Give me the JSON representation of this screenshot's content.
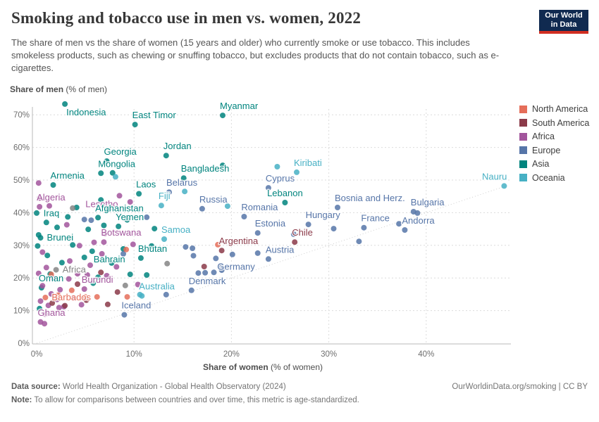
{
  "header": {
    "title": "Smoking and tobacco use in men vs. women, 2022",
    "subtitle": "The share of men vs the share of women (15 years and older) who currently smoke or use tobacco. This includes smokeless products, such as chewing or snuffing tobacco, but excludes products that do not contain tobacco, such as e-cigarettes.",
    "logo_line1": "Our World",
    "logo_line2": "in Data"
  },
  "chart_data": {
    "type": "scatter",
    "x_axis": {
      "label_bold": "Share of women",
      "label_rest": " (% of women)",
      "ticks": [
        0,
        10,
        20,
        30,
        40
      ],
      "max": 48.5
    },
    "y_axis": {
      "label_bold": "Share of men",
      "label_rest": " (% of men)",
      "ticks": [
        0,
        10,
        20,
        30,
        40,
        50,
        60,
        70
      ],
      "max": 74
    },
    "parity_line": {
      "from": 0,
      "to": 48.3
    },
    "grid": true,
    "colors": {
      "na": "#e56e5a",
      "sa": "#8b3a49",
      "af": "#a2559c",
      "eu": "#5675a8",
      "as": "#00847e",
      "oc": "#47b0c4",
      "gr": "#858585"
    },
    "legend": [
      {
        "label": "North America",
        "key": "na"
      },
      {
        "label": "South America",
        "key": "sa"
      },
      {
        "label": "Africa",
        "key": "af"
      },
      {
        "label": "Europe",
        "key": "eu"
      },
      {
        "label": "Asia",
        "key": "as"
      },
      {
        "label": "Oceania",
        "key": "oc"
      }
    ],
    "points": [
      [
        "Indonesia",
        2.9,
        73.3,
        "as",
        "br"
      ],
      [
        "East Timor",
        10.1,
        67,
        "as",
        "ar"
      ],
      [
        "Myanmar",
        19.1,
        69.8,
        "as",
        "ar"
      ],
      [
        "Jordan",
        13.3,
        57.5,
        "as",
        "ar"
      ],
      [
        "Georgia",
        7.2,
        55.8,
        "as",
        "ar"
      ],
      [
        "Mongolia",
        6.6,
        52.1,
        "as",
        "ar"
      ],
      [
        "Bangladesh",
        15.1,
        50.6,
        "as",
        "ar"
      ],
      [
        "Kiribati",
        26.7,
        52.4,
        "oc",
        "ar"
      ],
      [
        "Nauru",
        48,
        48.2,
        "oc",
        "al"
      ],
      [
        "Cyprus",
        23.8,
        47.6,
        "eu",
        "ar"
      ],
      [
        "Belarus",
        13.6,
        46.3,
        "eu",
        "ar"
      ],
      [
        "Laos",
        10.5,
        45.8,
        "as",
        "ar"
      ],
      [
        "Lesotho",
        8.5,
        45.2,
        "af",
        "bl"
      ],
      [
        "Armenia",
        1.7,
        48.5,
        "as",
        "ar"
      ],
      [
        "Algeria",
        0.3,
        41.8,
        "af",
        "ar"
      ],
      [
        "Fiji",
        12.8,
        42.2,
        "oc",
        "ar"
      ],
      [
        "Russia",
        17,
        41.2,
        "eu",
        "ar"
      ],
      [
        "Lebanon",
        25.5,
        43.1,
        "as",
        "a"
      ],
      [
        "Bosnia and Herz.",
        30.9,
        41.6,
        "eu",
        "ar"
      ],
      [
        "Bulgaria",
        38.7,
        40.3,
        "eu",
        "ar"
      ],
      [
        "Iraq",
        1,
        37,
        "as",
        "ar"
      ],
      [
        "Afghanistan",
        6.3,
        38.5,
        "as",
        "ar"
      ],
      [
        "Yemen",
        8.4,
        35.8,
        "as",
        "ar"
      ],
      [
        "Romania",
        21.3,
        38.8,
        "eu",
        "ar"
      ],
      [
        "Estonia",
        22.7,
        33.8,
        "eu",
        "ar"
      ],
      [
        "Hungary",
        27.9,
        36.4,
        "eu",
        "ar"
      ],
      [
        "France",
        33.6,
        35.4,
        "eu",
        "ar"
      ],
      [
        "Andorra",
        37.8,
        34.7,
        "eu",
        "ar"
      ],
      [
        "Chile",
        26.5,
        31,
        "sa",
        "ar"
      ],
      [
        "Argentina",
        19,
        28.4,
        "sa",
        "ar"
      ],
      [
        "Austria",
        23.8,
        25.8,
        "eu",
        "ar"
      ],
      [
        "Germany",
        18.4,
        26,
        "eu",
        "br"
      ],
      [
        "Brunei",
        0.4,
        32.3,
        "as",
        "r"
      ],
      [
        "Botswana",
        6.9,
        31,
        "af",
        "ar"
      ],
      [
        "Samoa",
        13.1,
        31.9,
        "oc",
        "ar"
      ],
      [
        "Bahrain",
        5.7,
        28.2,
        "as",
        "br"
      ],
      [
        "Bhutan",
        10.7,
        26.1,
        "as",
        "ar"
      ],
      [
        "Africa",
        2,
        22.5,
        "gr",
        "r"
      ],
      [
        "Oman",
        0.5,
        17,
        "as",
        "ar"
      ],
      [
        "Burundi",
        4.9,
        16.6,
        "af",
        "ar"
      ],
      [
        "Barbados",
        0.9,
        14,
        "na",
        "r"
      ],
      [
        "Australia",
        10.8,
        14.5,
        "oc",
        "ar"
      ],
      [
        "Denmark",
        15.9,
        16.2,
        "eu",
        "ar"
      ],
      [
        "Iceland",
        9,
        8.7,
        "eu",
        "ar"
      ],
      [
        "Ghana",
        0.4,
        6.5,
        "af",
        "ar"
      ],
      [
        "",
        0,
        39.9,
        "as"
      ],
      [
        "",
        0.2,
        33.2,
        "as"
      ],
      [
        "",
        0.1,
        29.8,
        "as"
      ],
      [
        "",
        1.4,
        21.2,
        "as"
      ],
      [
        "",
        0.3,
        10.6,
        "as"
      ],
      [
        "",
        2.6,
        24.7,
        "as"
      ],
      [
        "",
        1.1,
        26.9,
        "as"
      ],
      [
        "",
        3.2,
        38.7,
        "as"
      ],
      [
        "",
        4.1,
        41.6,
        "as"
      ],
      [
        "",
        5.3,
        34.9,
        "as"
      ],
      [
        "",
        3.7,
        30.1,
        "as"
      ],
      [
        "",
        5.8,
        18.4,
        "as"
      ],
      [
        "",
        4.9,
        26.3,
        "as"
      ],
      [
        "",
        7.8,
        52.2,
        "as"
      ],
      [
        "",
        6.6,
        43.9,
        "as"
      ],
      [
        "",
        7.4,
        41,
        "as"
      ],
      [
        "",
        9.3,
        37.8,
        "as"
      ],
      [
        "",
        6.9,
        36.1,
        "as"
      ],
      [
        "",
        8.9,
        28.9,
        "as"
      ],
      [
        "",
        7.7,
        24.6,
        "as"
      ],
      [
        "",
        9.6,
        21.1,
        "as"
      ],
      [
        "",
        6.3,
        20.2,
        "as"
      ],
      [
        "",
        11.8,
        29.8,
        "as"
      ],
      [
        "",
        12.1,
        35.1,
        "as"
      ],
      [
        "",
        11.3,
        20.9,
        "as"
      ],
      [
        "",
        19.1,
        54.5,
        "as"
      ],
      [
        "",
        2.1,
        35.5,
        "as"
      ],
      [
        "",
        0.2,
        49.1,
        "af"
      ],
      [
        "",
        0.3,
        44.5,
        "af"
      ],
      [
        "",
        1.3,
        42.1,
        "af"
      ],
      [
        "",
        0.6,
        27.9,
        "af"
      ],
      [
        "",
        1,
        23.2,
        "af"
      ],
      [
        "",
        0.2,
        21.4,
        "af"
      ],
      [
        "",
        1.7,
        19.9,
        "af"
      ],
      [
        "",
        0.6,
        17.6,
        "af"
      ],
      [
        "",
        0.4,
        12.9,
        "af"
      ],
      [
        "",
        1.2,
        11.6,
        "af"
      ],
      [
        "",
        2.3,
        10.9,
        "af"
      ],
      [
        "",
        0.9,
        8.9,
        "af"
      ],
      [
        "",
        2.1,
        13.4,
        "af"
      ],
      [
        "",
        2.8,
        11.2,
        "af"
      ],
      [
        "",
        1.5,
        15.1,
        "af"
      ],
      [
        "",
        2.4,
        16.4,
        "af"
      ],
      [
        "",
        3.3,
        19.7,
        "af"
      ],
      [
        "",
        4.2,
        21.3,
        "af"
      ],
      [
        "",
        3.8,
        13.9,
        "af"
      ],
      [
        "",
        4.6,
        11.8,
        "af"
      ],
      [
        "",
        5.2,
        20.9,
        "af"
      ],
      [
        "",
        3.4,
        25.2,
        "af"
      ],
      [
        "",
        4.4,
        29.9,
        "af"
      ],
      [
        "",
        5.5,
        23.9,
        "af"
      ],
      [
        "",
        3.1,
        36.3,
        "af"
      ],
      [
        "",
        7.2,
        20.7,
        "af"
      ],
      [
        "",
        6.7,
        27.4,
        "af"
      ],
      [
        "",
        8.2,
        23.4,
        "af"
      ],
      [
        "",
        9.9,
        30.3,
        "af"
      ],
      [
        "",
        7,
        33.5,
        "af"
      ],
      [
        "",
        9.6,
        43.3,
        "af"
      ],
      [
        "",
        10.4,
        18,
        "af"
      ],
      [
        "",
        5.9,
        30.9,
        "af"
      ],
      [
        "",
        0.8,
        6,
        "af"
      ],
      [
        "",
        4.9,
        37.9,
        "eu"
      ],
      [
        "",
        5.6,
        37.7,
        "eu"
      ],
      [
        "",
        8.9,
        27.4,
        "eu"
      ],
      [
        "",
        11.3,
        38.6,
        "eu"
      ],
      [
        "",
        13.3,
        14.9,
        "eu"
      ],
      [
        "",
        16.6,
        21.5,
        "eu"
      ],
      [
        "",
        17.3,
        21.6,
        "eu"
      ],
      [
        "",
        18.2,
        21.7,
        "eu"
      ],
      [
        "",
        19,
        22.4,
        "eu"
      ],
      [
        "",
        18.9,
        23.7,
        "eu"
      ],
      [
        "",
        16.1,
        26.8,
        "eu"
      ],
      [
        "",
        20.1,
        27.2,
        "eu"
      ],
      [
        "",
        22.7,
        27.6,
        "eu"
      ],
      [
        "",
        26.4,
        33.4,
        "eu"
      ],
      [
        "",
        30.5,
        35.1,
        "eu"
      ],
      [
        "",
        33.1,
        31.2,
        "eu"
      ],
      [
        "",
        37.2,
        36.6,
        "eu"
      ],
      [
        "",
        39.1,
        39.9,
        "eu"
      ],
      [
        "",
        15.3,
        29.5,
        "eu"
      ],
      [
        "",
        16,
        29.1,
        "eu"
      ],
      [
        "",
        8.1,
        51,
        "oc"
      ],
      [
        "",
        24.7,
        54.1,
        "oc"
      ],
      [
        "",
        19.6,
        42,
        "oc"
      ],
      [
        "",
        10.6,
        14.9,
        "oc"
      ],
      [
        "",
        15.2,
        46.5,
        "oc"
      ],
      [
        "",
        1.5,
        21.1,
        "na"
      ],
      [
        "",
        2.2,
        14.7,
        "na"
      ],
      [
        "",
        3.6,
        16.2,
        "na"
      ],
      [
        "",
        5,
        14.2,
        "na"
      ],
      [
        "",
        6.2,
        14.2,
        "na"
      ],
      [
        "",
        9.3,
        14.2,
        "na"
      ],
      [
        "",
        18.6,
        30.2,
        "na"
      ],
      [
        "",
        9.2,
        28.7,
        "na"
      ],
      [
        "",
        1.6,
        12.3,
        "sa"
      ],
      [
        "",
        2.9,
        11.5,
        "sa"
      ],
      [
        "",
        4.2,
        18.1,
        "sa"
      ],
      [
        "",
        5.1,
        13.2,
        "sa"
      ],
      [
        "",
        7.3,
        11.9,
        "sa"
      ],
      [
        "",
        6.6,
        21.7,
        "sa"
      ],
      [
        "",
        8.3,
        15.7,
        "sa"
      ],
      [
        "",
        17.2,
        23.5,
        "sa"
      ],
      [
        "",
        3.7,
        41.4,
        "gr"
      ],
      [
        "",
        9.1,
        17.7,
        "gr"
      ],
      [
        "",
        13.4,
        24.4,
        "gr"
      ]
    ]
  },
  "footer": {
    "datasource_label": "Data source:",
    "datasource_text": " World Health Organization - Global Health Observatory (2024)",
    "link_text": "OurWorldinData.org/smoking | CC BY",
    "note_label": "Note:",
    "note_text": " To allow for comparisons between countries and over time, this metric is age-standardized."
  }
}
